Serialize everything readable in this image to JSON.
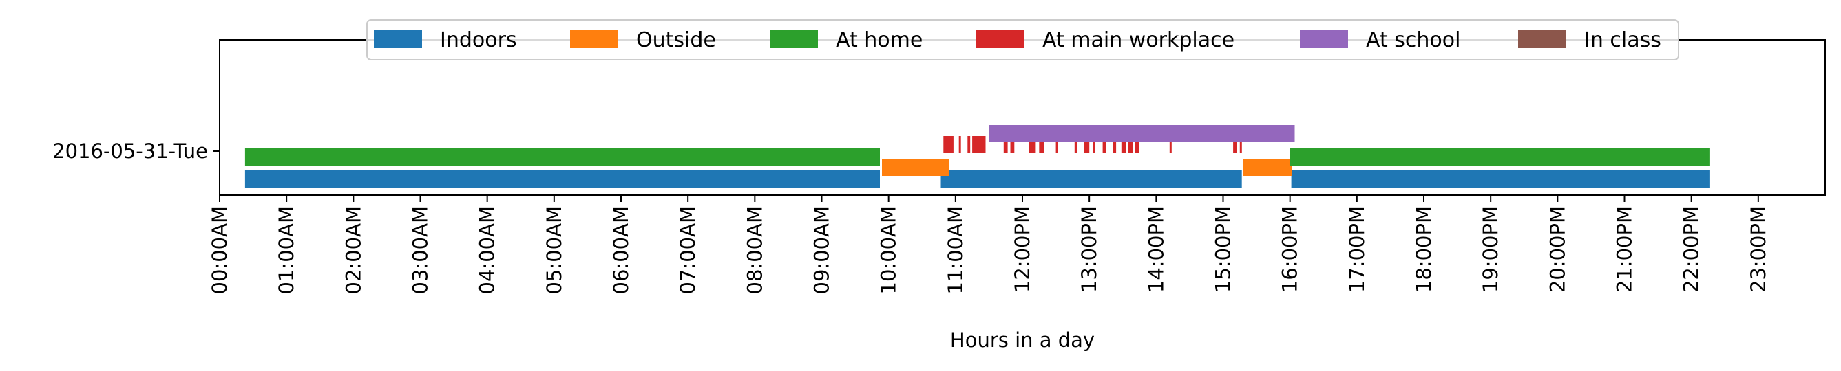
{
  "chart_data": {
    "type": "timeline",
    "xlabel": "Hours in a day",
    "ylabel": "",
    "xlim": [
      0,
      24
    ],
    "x_ticks": [
      {
        "value": 0,
        "label": "00:00AM"
      },
      {
        "value": 1,
        "label": "01:00AM"
      },
      {
        "value": 2,
        "label": "02:00AM"
      },
      {
        "value": 3,
        "label": "03:00AM"
      },
      {
        "value": 4,
        "label": "04:00AM"
      },
      {
        "value": 5,
        "label": "05:00AM"
      },
      {
        "value": 6,
        "label": "06:00AM"
      },
      {
        "value": 7,
        "label": "07:00AM"
      },
      {
        "value": 8,
        "label": "08:00AM"
      },
      {
        "value": 9,
        "label": "09:00AM"
      },
      {
        "value": 10,
        "label": "10:00AM"
      },
      {
        "value": 11,
        "label": "11:00AM"
      },
      {
        "value": 12,
        "label": "12:00PM"
      },
      {
        "value": 13,
        "label": "13:00PM"
      },
      {
        "value": 14,
        "label": "14:00PM"
      },
      {
        "value": 15,
        "label": "15:00PM"
      },
      {
        "value": 16,
        "label": "16:00PM"
      },
      {
        "value": 17,
        "label": "17:00PM"
      },
      {
        "value": 18,
        "label": "18:00PM"
      },
      {
        "value": 19,
        "label": "19:00PM"
      },
      {
        "value": 20,
        "label": "20:00PM"
      },
      {
        "value": 21,
        "label": "21:00PM"
      },
      {
        "value": 22,
        "label": "22:00PM"
      },
      {
        "value": 23,
        "label": "23:00PM"
      }
    ],
    "y_ticks": [
      "2016-05-31-Tue"
    ],
    "legend_position": "top-center",
    "grid": false,
    "series": [
      {
        "name": "Indoors",
        "color": "#1f77b4",
        "intervals": [
          [
            0.38,
            9.87
          ],
          [
            10.78,
            15.28
          ],
          [
            16.02,
            22.28
          ]
        ]
      },
      {
        "name": "Outside",
        "color": "#ff7f0e",
        "intervals": [
          [
            9.9,
            10.9
          ],
          [
            15.3,
            16.03
          ]
        ]
      },
      {
        "name": "At home",
        "color": "#2ca02c",
        "intervals": [
          [
            0.38,
            9.87
          ],
          [
            16.0,
            22.28
          ]
        ]
      },
      {
        "name": "At main workplace",
        "color": "#d62728",
        "intervals": [
          [
            10.82,
            10.97
          ],
          [
            11.05,
            11.08
          ],
          [
            11.18,
            11.22
          ],
          [
            11.25,
            11.45
          ],
          [
            11.72,
            11.78
          ],
          [
            11.82,
            11.88
          ],
          [
            12.1,
            12.2
          ],
          [
            12.25,
            12.32
          ],
          [
            12.5,
            12.52
          ],
          [
            12.78,
            12.82
          ],
          [
            12.92,
            13.0
          ],
          [
            13.05,
            13.08
          ],
          [
            13.2,
            13.25
          ],
          [
            13.35,
            13.4
          ],
          [
            13.48,
            13.55
          ],
          [
            13.58,
            13.65
          ],
          [
            13.68,
            13.75
          ],
          [
            14.2,
            14.22
          ],
          [
            15.15,
            15.2
          ],
          [
            15.25,
            15.28
          ]
        ]
      },
      {
        "name": "At school",
        "color": "#9467bd",
        "intervals": [
          [
            11.5,
            16.07
          ]
        ]
      },
      {
        "name": "In class",
        "color": "#8c564b",
        "intervals": []
      }
    ]
  }
}
